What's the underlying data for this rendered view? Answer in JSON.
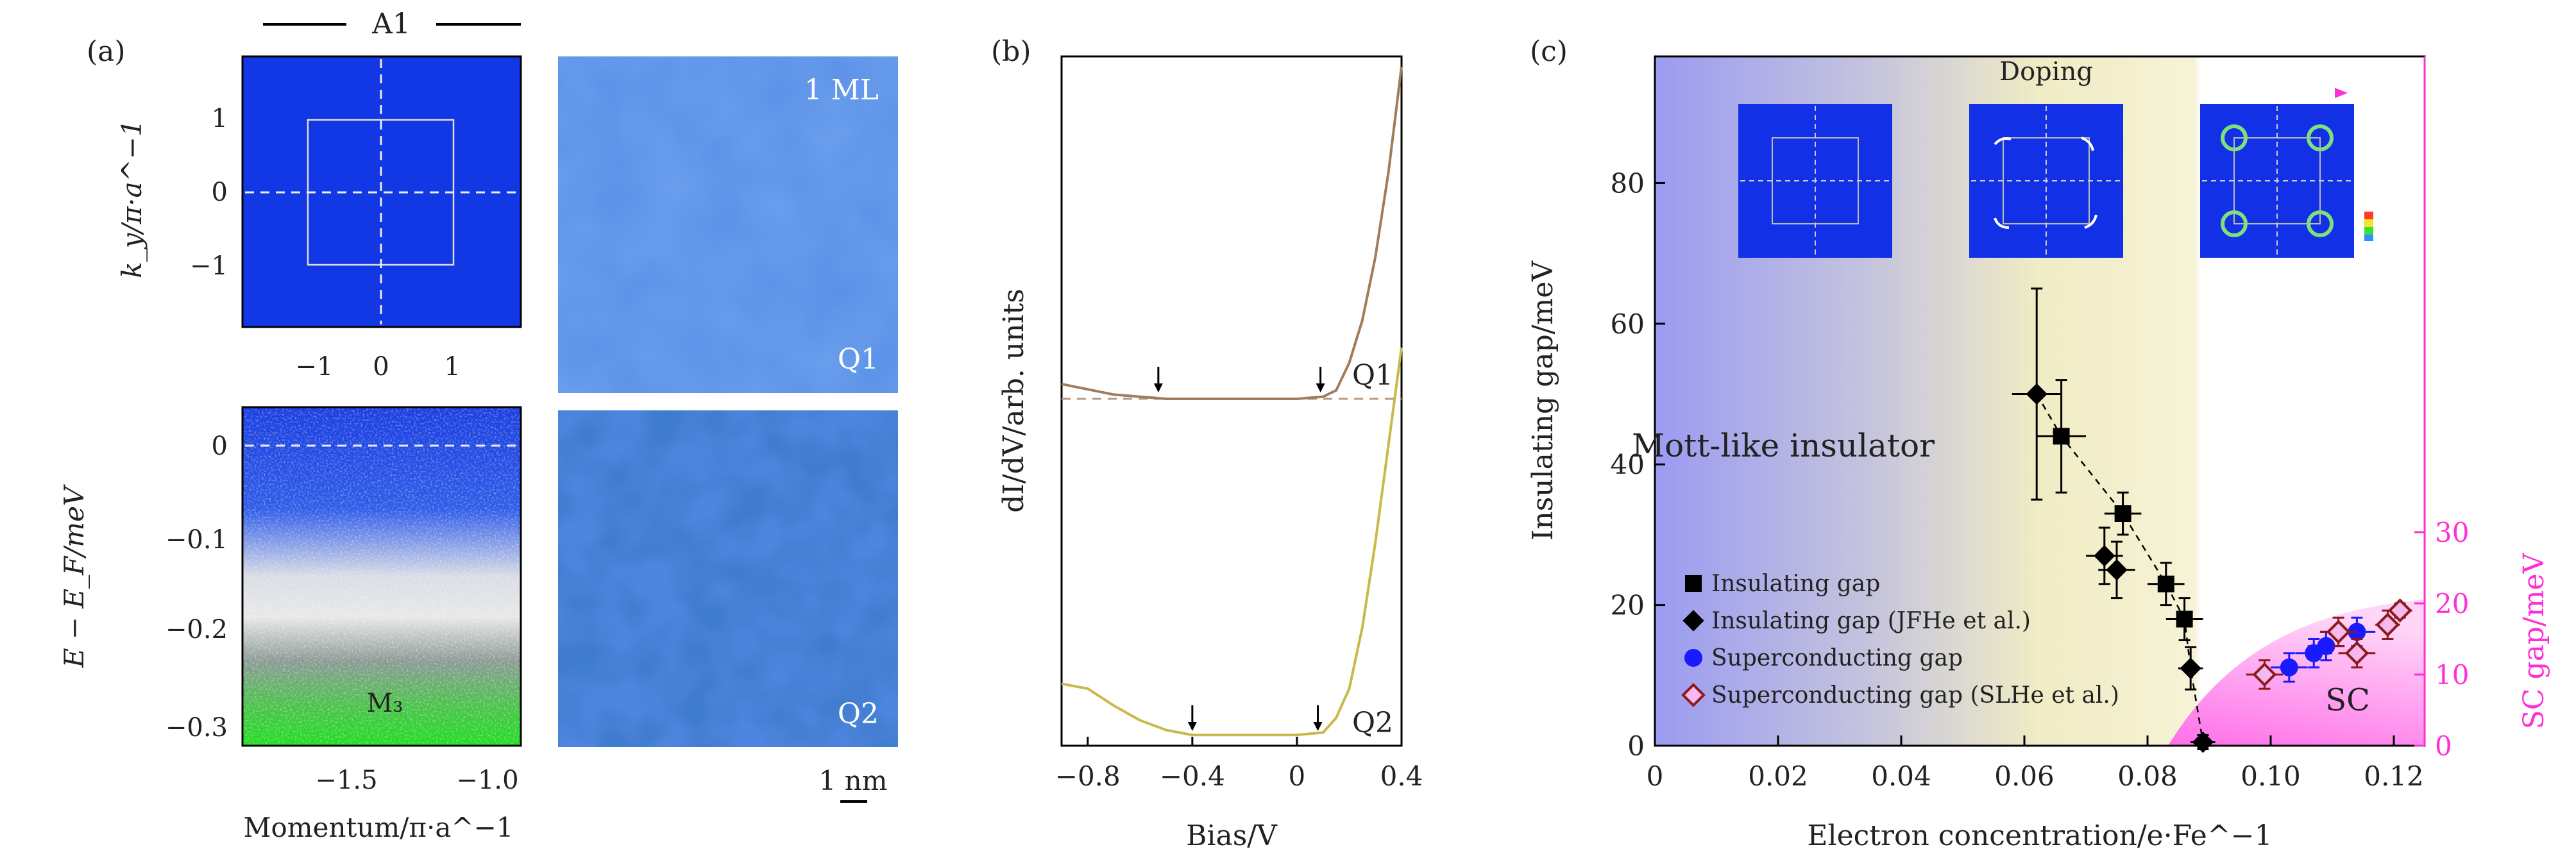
{
  "panels": {
    "a": {
      "label": "(a)",
      "map_title": "A1",
      "map_ylabel": "k_y/π·a^−1",
      "map_xticks": [
        "−1",
        "0",
        "1"
      ],
      "map_yticks": [
        "1",
        "0",
        "−1"
      ],
      "arpes_ylabel": "E − E_F/meV",
      "arpes_xlabel": "Momentum/π·a^−1",
      "arpes_xticks": [
        "−1.5",
        "−1.0"
      ],
      "arpes_yticks": [
        "0",
        "−0.1",
        "−0.2",
        "−0.3"
      ],
      "arpes_band": "M₃",
      "stm_top_film": "1 ML",
      "stm_top_label": "Q1",
      "stm_bottom_label": "Q2",
      "scale_bar": "1 nm"
    },
    "b": {
      "label": "(b)",
      "ylabel": "dI/dV/arb. units",
      "xlabel": "Bias/V",
      "xticks": [
        "−0.8",
        "−0.4",
        "0",
        "0.4"
      ],
      "curve_q1": "Q1",
      "curve_q2": "Q2",
      "color_q1": "#a07c5a",
      "color_q2": "#c9b84a"
    },
    "c": {
      "label": "(c)",
      "doping_label": "Doping",
      "region_mott": "Mott-like insulator",
      "region_sc": "SC",
      "ylabel_left": "Insulating gap/meV",
      "ylabel_right": "SC gap/meV",
      "xlabel": "Electron concentration/e·Fe^−1",
      "legend": [
        {
          "label": "Insulating gap",
          "marker": "square",
          "color": "#000000"
        },
        {
          "label": "Insulating gap (JFHe et al.)",
          "marker": "diamond",
          "color": "#000000"
        },
        {
          "label": "Superconducting gap",
          "marker": "circle",
          "color": "#1a1aff"
        },
        {
          "label": "Superconducting gap (SLHe et al.)",
          "marker": "open-diamond",
          "color": "#8b1a1a"
        }
      ],
      "accent_color": "#ff2fd6"
    }
  },
  "chart_data": [
    {
      "type": "line",
      "panel": "b",
      "xlabel": "Bias/V",
      "ylabel": "dI/dV/arb. units",
      "xlim": [
        -0.9,
        0.4
      ],
      "series": [
        {
          "name": "Q1",
          "x": [
            -0.9,
            -0.7,
            -0.5,
            -0.3,
            -0.1,
            0.0,
            0.1,
            0.15,
            0.2,
            0.25,
            0.3,
            0.35,
            0.4
          ],
          "y": [
            1.05,
            1.0,
            0.98,
            0.98,
            0.98,
            0.98,
            0.99,
            1.02,
            1.15,
            1.35,
            1.65,
            2.05,
            2.55
          ]
        },
        {
          "name": "Q2",
          "x": [
            -0.9,
            -0.8,
            -0.7,
            -0.6,
            -0.5,
            -0.4,
            -0.2,
            0.0,
            0.1,
            0.15,
            0.2,
            0.25,
            0.3,
            0.35,
            0.4
          ],
          "y": [
            0.22,
            0.2,
            0.13,
            0.07,
            0.03,
            0.01,
            0.01,
            0.01,
            0.02,
            0.08,
            0.2,
            0.45,
            0.8,
            1.2,
            1.6
          ]
        }
      ],
      "gap_markers": {
        "Q1": [
          -0.53,
          0.09
        ],
        "Q2": [
          -0.4,
          0.08
        ]
      }
    },
    {
      "type": "scatter",
      "panel": "c",
      "xlabel": "Electron concentration/e·Fe^−1",
      "ylabel": "Insulating gap/meV",
      "ylabel_right": "SC gap/meV",
      "xlim": [
        0,
        0.125
      ],
      "ylim": [
        0,
        98
      ],
      "xticks": [
        0,
        0.02,
        0.04,
        0.06,
        0.08,
        0.1,
        0.12
      ],
      "yticks": [
        0,
        20,
        40,
        60,
        80
      ],
      "yticks_right": [
        0,
        10,
        20,
        30
      ],
      "series": [
        {
          "name": "Insulating gap",
          "marker": "square",
          "points": [
            [
              0.066,
              44,
              0.004,
              8
            ],
            [
              0.076,
              33,
              0.003,
              3
            ],
            [
              0.083,
              23,
              0.003,
              3
            ],
            [
              0.086,
              18,
              0.003,
              3
            ]
          ]
        },
        {
          "name": "Insulating gap (JFHe et al.)",
          "marker": "diamond",
          "points": [
            [
              0.062,
              50,
              0.004,
              15
            ],
            [
              0.073,
              27,
              0.003,
              4
            ],
            [
              0.075,
              25,
              0.003,
              4
            ],
            [
              0.087,
              11,
              0.002,
              3
            ],
            [
              0.089,
              0.5,
              0.002,
              1
            ]
          ]
        },
        {
          "name": "Superconducting gap",
          "marker": "circle",
          "right_axis": true,
          "points": [
            [
              0.103,
              11,
              0.003,
              2
            ],
            [
              0.107,
              13,
              0.003,
              2
            ],
            [
              0.109,
              14,
              0.003,
              2
            ],
            [
              0.114,
              16,
              0.003,
              2
            ]
          ]
        },
        {
          "name": "Superconducting gap (SLHe et al.)",
          "marker": "open-diamond",
          "right_axis": true,
          "points": [
            [
              0.099,
              10,
              0.003,
              2
            ],
            [
              0.111,
              16,
              0.003,
              2
            ],
            [
              0.114,
              13,
              0.003,
              2
            ],
            [
              0.119,
              17,
              0.002,
              2
            ],
            [
              0.121,
              19,
              0.002,
              1
            ]
          ]
        }
      ]
    }
  ]
}
